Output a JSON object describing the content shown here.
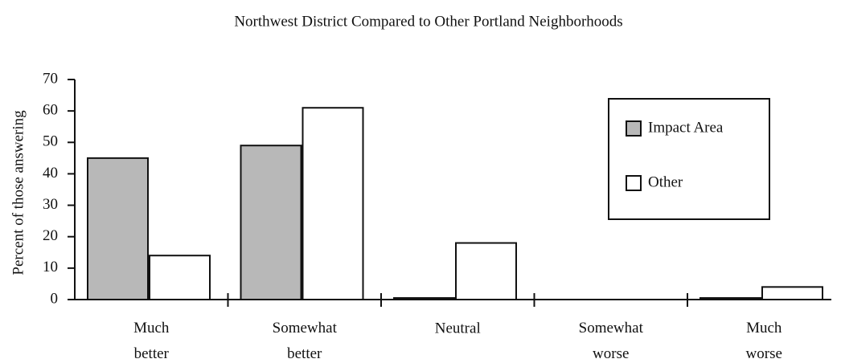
{
  "chart_data": {
    "type": "bar",
    "title": "Northwest District Compared to Other Portland Neighborhoods",
    "ylabel": "Percent of those answering",
    "categories": [
      "Much better",
      "Somewhat better",
      "Neutral",
      "Somewhat worse",
      "Much worse"
    ],
    "series": [
      {
        "name": "Impact Area",
        "color": "#b8b8b8",
        "values": [
          45,
          49,
          0.5,
          0,
          0.5
        ]
      },
      {
        "name": "Other",
        "color": "#ffffff",
        "values": [
          14,
          61,
          18,
          0,
          4
        ]
      }
    ],
    "ylim": [
      0,
      70
    ],
    "yticks": [
      0,
      10,
      20,
      30,
      40,
      50,
      60,
      70
    ],
    "legend": "upper right"
  }
}
